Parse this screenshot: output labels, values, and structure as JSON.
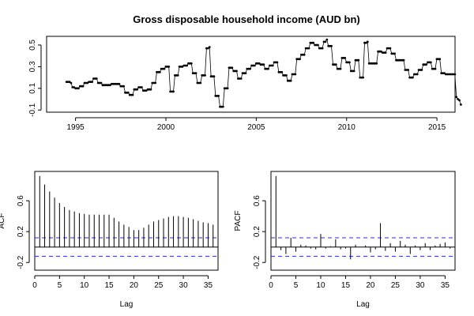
{
  "chart_data": [
    {
      "type": "line",
      "title": "Gross disposable household income (AUD bn)",
      "xlabel": "",
      "ylabel": "",
      "xlim": [
        1993.4,
        2016.0
      ],
      "ylim": [
        -0.12,
        0.58
      ],
      "x_ticks": [
        1995,
        2000,
        2005,
        2010,
        2015
      ],
      "y_ticks": [
        -0.1,
        0.1,
        0.3,
        0.5
      ],
      "start": 1994.5,
      "step": 0.0833,
      "values": [
        0.16,
        0.16,
        0.16,
        0.15,
        0.11,
        0.11,
        0.1,
        0.1,
        0.1,
        0.12,
        0.12,
        0.12,
        0.15,
        0.15,
        0.15,
        0.16,
        0.16,
        0.16,
        0.19,
        0.19,
        0.19,
        0.15,
        0.15,
        0.15,
        0.13,
        0.13,
        0.13,
        0.13,
        0.13,
        0.13,
        0.14,
        0.14,
        0.14,
        0.14,
        0.14,
        0.14,
        0.12,
        0.12,
        0.12,
        0.06,
        0.06,
        0.06,
        0.04,
        0.04,
        0.04,
        0.09,
        0.09,
        0.09,
        0.11,
        0.11,
        0.11,
        0.08,
        0.08,
        0.08,
        0.09,
        0.09,
        0.09,
        0.15,
        0.15,
        0.15,
        0.25,
        0.25,
        0.25,
        0.28,
        0.28,
        0.28,
        0.3,
        0.3,
        0.3,
        0.07,
        0.07,
        0.07,
        0.22,
        0.22,
        0.22,
        0.3,
        0.3,
        0.3,
        0.31,
        0.31,
        0.31,
        0.33,
        0.33,
        0.33,
        0.24,
        0.24,
        0.24,
        0.15,
        0.15,
        0.15,
        0.22,
        0.22,
        0.22,
        0.47,
        0.47,
        0.48,
        0.21,
        0.21,
        0.21,
        0.03,
        0.03,
        0.03,
        -0.07,
        -0.07,
        -0.07,
        0.1,
        0.1,
        0.1,
        0.29,
        0.29,
        0.29,
        0.26,
        0.26,
        0.26,
        0.19,
        0.19,
        0.19,
        0.24,
        0.24,
        0.24,
        0.28,
        0.28,
        0.28,
        0.31,
        0.31,
        0.31,
        0.33,
        0.33,
        0.33,
        0.32,
        0.32,
        0.32,
        0.28,
        0.28,
        0.28,
        0.31,
        0.31,
        0.31,
        0.34,
        0.34,
        0.34,
        0.25,
        0.25,
        0.25,
        0.22,
        0.22,
        0.22,
        0.17,
        0.17,
        0.17,
        0.23,
        0.23,
        0.23,
        0.37,
        0.37,
        0.37,
        0.41,
        0.41,
        0.41,
        0.47,
        0.47,
        0.47,
        0.52,
        0.52,
        0.52,
        0.5,
        0.5,
        0.5,
        0.47,
        0.47,
        0.47,
        0.53,
        0.53,
        0.55,
        0.49,
        0.49,
        0.49,
        0.32,
        0.32,
        0.32,
        0.28,
        0.28,
        0.28,
        0.38,
        0.38,
        0.38,
        0.34,
        0.34,
        0.34,
        0.26,
        0.26,
        0.26,
        0.36,
        0.36,
        0.36,
        0.2,
        0.2,
        0.2,
        0.52,
        0.52,
        0.53,
        0.33,
        0.33,
        0.33,
        0.33,
        0.33,
        0.33,
        0.44,
        0.44,
        0.44,
        0.43,
        0.43,
        0.43,
        0.47,
        0.47,
        0.47,
        0.42,
        0.42,
        0.42,
        0.36,
        0.36,
        0.36,
        0.36,
        0.36,
        0.36,
        0.27,
        0.27,
        0.27,
        0.2,
        0.2,
        0.2,
        0.23,
        0.23,
        0.23,
        0.27,
        0.27,
        0.27,
        0.32,
        0.32,
        0.32,
        0.34,
        0.34,
        0.34,
        0.28,
        0.28,
        0.28,
        0.37,
        0.37,
        0.37,
        0.24,
        0.24,
        0.24,
        0.23,
        0.23,
        0.23,
        0.23,
        0.23,
        0.23,
        0.23,
        0.02,
        0.0,
        -0.01,
        -0.05
      ]
    },
    {
      "type": "bar",
      "xlabel": "Lag",
      "ylabel": "ACF",
      "xlim": [
        0,
        37
      ],
      "ylim": [
        -0.3,
        0.98
      ],
      "x_ticks": [
        0,
        5,
        10,
        15,
        20,
        25,
        30,
        35
      ],
      "y_ticks": [
        -0.2,
        0.2,
        0.6
      ],
      "lags": [
        1,
        2,
        3,
        4,
        5,
        6,
        7,
        8,
        9,
        10,
        11,
        12,
        13,
        14,
        15,
        16,
        17,
        18,
        19,
        20,
        21,
        22,
        23,
        24,
        25,
        26,
        27,
        28,
        29,
        30,
        31,
        32,
        33,
        34,
        35,
        36
      ],
      "values": [
        0.92,
        0.81,
        0.72,
        0.64,
        0.57,
        0.52,
        0.48,
        0.46,
        0.44,
        0.43,
        0.42,
        0.42,
        0.42,
        0.42,
        0.42,
        0.38,
        0.33,
        0.29,
        0.26,
        0.22,
        0.22,
        0.25,
        0.29,
        0.33,
        0.35,
        0.37,
        0.39,
        0.4,
        0.4,
        0.39,
        0.38,
        0.36,
        0.34,
        0.32,
        0.31,
        0.29
      ],
      "ci": 0.12
    },
    {
      "type": "bar",
      "xlabel": "Lag",
      "ylabel": "PACF",
      "xlim": [
        0,
        37
      ],
      "ylim": [
        -0.3,
        0.98
      ],
      "x_ticks": [
        0,
        5,
        10,
        15,
        20,
        25,
        30,
        35
      ],
      "y_ticks": [
        -0.2,
        0.2,
        0.6
      ],
      "lags": [
        1,
        2,
        3,
        4,
        5,
        6,
        7,
        8,
        9,
        10,
        11,
        12,
        13,
        14,
        15,
        16,
        17,
        18,
        19,
        20,
        21,
        22,
        23,
        24,
        25,
        26,
        27,
        28,
        29,
        30,
        31,
        32,
        33,
        34,
        35,
        36
      ],
      "values": [
        0.92,
        -0.04,
        -0.09,
        0.12,
        -0.06,
        0.03,
        0.02,
        -0.02,
        -0.03,
        0.17,
        -0.02,
        0.01,
        0.1,
        -0.03,
        -0.02,
        -0.16,
        0.03,
        0.0,
        0.02,
        -0.07,
        -0.03,
        0.31,
        -0.05,
        0.05,
        -0.06,
        0.08,
        0.03,
        -0.09,
        0.02,
        -0.04,
        0.05,
        -0.04,
        0.02,
        0.04,
        0.06,
        -0.02
      ],
      "ci": 0.12
    }
  ]
}
